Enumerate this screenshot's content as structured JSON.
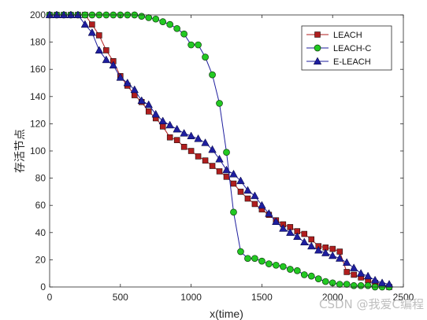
{
  "chart_data": {
    "type": "line",
    "title": "",
    "xlabel": "x(time)",
    "ylabel": "存活节点",
    "xlim": [
      0,
      2500
    ],
    "ylim": [
      0,
      200
    ],
    "xticks": [
      "0",
      "500",
      "1000",
      "1500",
      "2000",
      "2500"
    ],
    "yticks": [
      "0",
      "20",
      "40",
      "60",
      "80",
      "100",
      "120",
      "140",
      "160",
      "180",
      "200"
    ],
    "grid": false,
    "legend_position": "top-right",
    "series": [
      {
        "name": "LEACH",
        "color": "#b01e1e",
        "marker": "square",
        "x": [
          0,
          50,
          100,
          150,
          200,
          250,
          300,
          350,
          400,
          450,
          500,
          550,
          600,
          650,
          700,
          750,
          800,
          850,
          900,
          950,
          1000,
          1050,
          1100,
          1150,
          1200,
          1250,
          1300,
          1350,
          1400,
          1450,
          1500,
          1550,
          1600,
          1650,
          1700,
          1750,
          1800,
          1850,
          1900,
          1950,
          2000,
          2050,
          2100,
          2150,
          2200,
          2250,
          2300,
          2350,
          2400
        ],
        "y": [
          200,
          200,
          200,
          200,
          200,
          200,
          193,
          185,
          174,
          166,
          155,
          148,
          141,
          136,
          129,
          124,
          118,
          110,
          108,
          103,
          100,
          96,
          93,
          89,
          85,
          81,
          76,
          70,
          65,
          61,
          57,
          53,
          49,
          46,
          44,
          41,
          39,
          35,
          30,
          29,
          28,
          26,
          11,
          9,
          7,
          5,
          3,
          1,
          0
        ]
      },
      {
        "name": "LEACH-C",
        "color": "#1e1e9e",
        "marker_fill": "#22c922",
        "marker": "circle",
        "x": [
          0,
          50,
          100,
          150,
          200,
          250,
          300,
          350,
          400,
          450,
          500,
          550,
          600,
          650,
          700,
          750,
          800,
          850,
          900,
          950,
          1000,
          1050,
          1100,
          1150,
          1200,
          1250,
          1300,
          1350,
          1400,
          1450,
          1500,
          1550,
          1600,
          1650,
          1700,
          1750,
          1800,
          1850,
          1900,
          1950,
          2000,
          2050,
          2100,
          2150,
          2200,
          2250,
          2300,
          2350,
          2400
        ],
        "y": [
          200,
          200,
          200,
          200,
          200,
          200,
          200,
          200,
          200,
          200,
          200,
          200,
          200,
          199,
          198,
          197,
          195,
          193,
          190,
          186,
          178,
          178,
          169,
          156,
          135,
          99,
          55,
          26,
          21,
          21,
          19,
          17,
          16,
          15,
          13,
          12,
          9,
          8,
          6,
          4,
          3,
          2,
          2,
          1,
          1,
          1,
          0,
          0,
          0
        ]
      },
      {
        "name": "E-LEACH",
        "color": "#1e1e9e",
        "marker": "triangle",
        "x": [
          0,
          50,
          100,
          150,
          200,
          250,
          300,
          350,
          400,
          450,
          500,
          550,
          600,
          650,
          700,
          750,
          800,
          850,
          900,
          950,
          1000,
          1050,
          1100,
          1150,
          1200,
          1250,
          1300,
          1350,
          1400,
          1450,
          1500,
          1550,
          1600,
          1650,
          1700,
          1750,
          1800,
          1850,
          1900,
          1950,
          2000,
          2050,
          2100,
          2150,
          2200,
          2250,
          2300,
          2350,
          2400
        ],
        "y": [
          200,
          200,
          200,
          200,
          200,
          193,
          187,
          174,
          167,
          163,
          154,
          150,
          145,
          137,
          134,
          127,
          122,
          119,
          116,
          113,
          111,
          109,
          106,
          101,
          94,
          86,
          83,
          78,
          71,
          67,
          60,
          54,
          48,
          43,
          40,
          37,
          33,
          30,
          27,
          25,
          23,
          21,
          18,
          14,
          10,
          8,
          5,
          3,
          2
        ]
      }
    ]
  },
  "watermark": "CSDN @我爱C编程"
}
